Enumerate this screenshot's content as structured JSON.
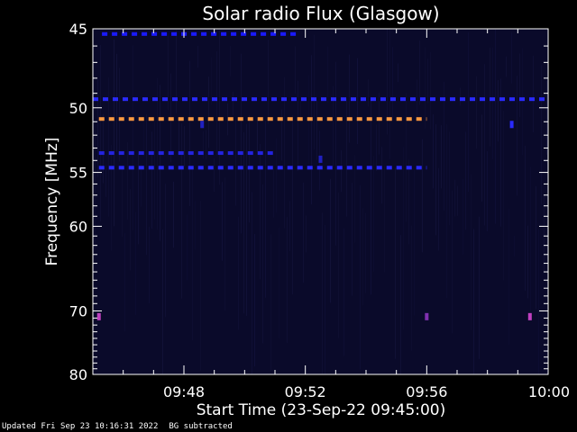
{
  "chart_data": {
    "type": "heatmap",
    "title": "Solar radio Flux (Glasgow)",
    "xlabel": "Start Time (23-Sep-22 09:45:00)",
    "ylabel": "Frequency [MHz]",
    "x_range_minutes": [
      0,
      15
    ],
    "x_ticks": [
      {
        "minute": 3,
        "label": "09:48"
      },
      {
        "minute": 7,
        "label": "09:52"
      },
      {
        "minute": 11,
        "label": "09:56"
      },
      {
        "minute": 15,
        "label": "10:00"
      }
    ],
    "ylim_mhz": [
      45,
      80
    ],
    "y_ticks": [
      {
        "mhz": 45,
        "label": "45"
      },
      {
        "mhz": 50,
        "label": "50"
      },
      {
        "mhz": 55,
        "label": "55"
      },
      {
        "mhz": 60,
        "label": "60"
      },
      {
        "mhz": 70,
        "label": "70"
      },
      {
        "mhz": 80,
        "label": "80"
      }
    ],
    "y_minor_ticks_mhz": [
      46,
      47,
      48,
      49,
      51,
      52,
      53,
      54,
      56,
      57,
      58,
      59,
      61,
      62,
      63,
      64,
      65,
      66,
      67,
      68,
      69,
      71,
      72,
      73,
      74,
      75,
      76,
      77,
      78,
      79
    ],
    "background_color": "#0a0a2a",
    "bands": [
      {
        "mhz": 45.3,
        "start_min": 0.3,
        "end_min": 6.8,
        "color": "#1a1aff",
        "dash": true
      },
      {
        "mhz": 49.4,
        "start_min": 0.0,
        "end_min": 15.0,
        "color": "#2a2aff",
        "dash": true
      },
      {
        "mhz": 50.8,
        "start_min": 0.2,
        "end_min": 11.0,
        "color": "#ff9a40",
        "dash": true
      },
      {
        "mhz": 53.4,
        "start_min": 0.2,
        "end_min": 6.0,
        "color": "#2323e0",
        "dash": true
      },
      {
        "mhz": 54.6,
        "start_min": 0.2,
        "end_min": 11.0,
        "color": "#2a2aff",
        "dash": true
      }
    ],
    "spots": [
      {
        "minute": 0.2,
        "mhz": 70.8,
        "color": "#c040c0"
      },
      {
        "minute": 11.0,
        "mhz": 70.8,
        "color": "#8030b0"
      },
      {
        "minute": 14.4,
        "mhz": 70.8,
        "color": "#c040c0"
      },
      {
        "minute": 13.8,
        "mhz": 51.2,
        "color": "#2a2aff"
      },
      {
        "minute": 3.6,
        "mhz": 51.2,
        "color": "#2020c0"
      },
      {
        "minute": 7.5,
        "mhz": 53.9,
        "color": "#2020c0"
      }
    ]
  },
  "footer": {
    "updated": "Updated Fri Sep 23 10:16:31 2022",
    "bg_note": "BG subtracted"
  }
}
